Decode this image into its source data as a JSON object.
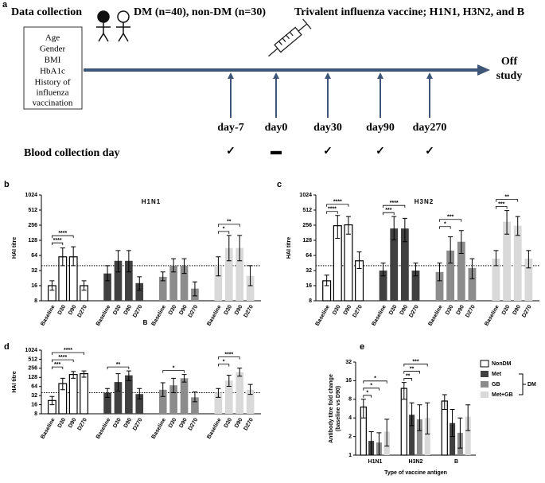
{
  "timeline": {
    "label": "a",
    "left_title": "Data collection",
    "groups": "DM (n=40), non-DM (n=30)",
    "vaccine": "Trivalent influenza vaccine; H1N1, H3N2, and B",
    "variables": [
      "Age",
      "Gender",
      "BMI",
      "HbA1c",
      "History of",
      "influenza",
      "vaccination"
    ],
    "end": [
      "Off",
      "study"
    ],
    "days": [
      "day-7",
      "day0",
      "day30",
      "day90",
      "day270"
    ],
    "blood_label": "Blood collection day",
    "collection": [
      "✓",
      "▬",
      "✓",
      "✓",
      "✓"
    ]
  },
  "chart_data": [
    {
      "type": "bar",
      "panel": "b",
      "title": "H1N1",
      "ylabel": "HAI titre",
      "group_by": "series",
      "yscale": "log",
      "categories": [
        "Baseline",
        "D30",
        "D90",
        "D270"
      ],
      "series": [
        {
          "color": "#ffffff",
          "values": [
            16,
            60,
            60,
            16
          ],
          "err_low": [
            13,
            40,
            40,
            13
          ],
          "err_high": [
            20,
            90,
            95,
            20
          ]
        },
        {
          "color": "#404040",
          "values": [
            28,
            50,
            50,
            18
          ],
          "err_low": [
            20,
            30,
            30,
            13
          ],
          "err_high": [
            40,
            80,
            80,
            24
          ]
        },
        {
          "color": "#8c8c8c",
          "values": [
            24,
            40,
            40,
            14
          ],
          "err_low": [
            20,
            30,
            28,
            10
          ],
          "err_high": [
            30,
            55,
            55,
            19
          ]
        },
        {
          "color": "#d9d9d9",
          "values": [
            40,
            90,
            90,
            25
          ],
          "err_low": [
            25,
            50,
            50,
            16
          ],
          "err_high": [
            60,
            160,
            160,
            40
          ]
        }
      ],
      "ref_line": 40,
      "brackets": [
        {
          "group": 0,
          "from": 0,
          "to": 1,
          "label": "****"
        },
        {
          "group": 0,
          "from": 0,
          "to": 2,
          "label": "****"
        },
        {
          "group": 3,
          "from": 0,
          "to": 1,
          "label": "*"
        },
        {
          "group": 3,
          "from": 0,
          "to": 2,
          "label": "**"
        }
      ],
      "ylim": [
        8,
        1024
      ],
      "yticks": [
        8,
        16,
        32,
        64,
        128,
        256,
        512,
        1024
      ]
    },
    {
      "type": "bar",
      "panel": "c",
      "title": "H3N2",
      "ylabel": "HAI titre",
      "group_by": "series",
      "yscale": "log",
      "categories": [
        "Baseline",
        "D30",
        "D90",
        "D270"
      ],
      "series": [
        {
          "color": "#ffffff",
          "values": [
            20,
            250,
            260,
            50
          ],
          "err_low": [
            16,
            140,
            170,
            35
          ],
          "err_high": [
            26,
            400,
            380,
            75
          ]
        },
        {
          "color": "#404040",
          "values": [
            32,
            220,
            220,
            32
          ],
          "err_low": [
            25,
            130,
            120,
            25
          ],
          "err_high": [
            45,
            380,
            350,
            45
          ]
        },
        {
          "color": "#8c8c8c",
          "values": [
            30,
            80,
            120,
            36
          ],
          "err_low": [
            20,
            45,
            70,
            22
          ],
          "err_high": [
            45,
            150,
            200,
            55
          ]
        },
        {
          "color": "#d9d9d9",
          "values": [
            55,
            300,
            250,
            55
          ],
          "err_low": [
            40,
            170,
            160,
            36
          ],
          "err_high": [
            80,
            500,
            380,
            80
          ]
        }
      ],
      "ref_line": 40,
      "brackets": [
        {
          "group": 0,
          "from": 0,
          "to": 1,
          "label": "****"
        },
        {
          "group": 0,
          "from": 0,
          "to": 2,
          "label": "****"
        },
        {
          "group": 1,
          "from": 0,
          "to": 1,
          "label": "***"
        },
        {
          "group": 1,
          "from": 0,
          "to": 2,
          "label": "****"
        },
        {
          "group": 2,
          "from": 0,
          "to": 1,
          "label": "*"
        },
        {
          "group": 2,
          "from": 0,
          "to": 2,
          "label": "***"
        },
        {
          "group": 3,
          "from": 0,
          "to": 1,
          "label": "***"
        },
        {
          "group": 3,
          "from": 0,
          "to": 2,
          "label": "**"
        }
      ],
      "ylim": [
        8,
        1024
      ],
      "yticks": [
        8,
        16,
        32,
        64,
        128,
        256,
        512,
        1024
      ]
    },
    {
      "type": "bar",
      "panel": "d",
      "title": "B",
      "ylabel": "HAI titre",
      "group_by": "series",
      "yscale": "log",
      "categories": [
        "Baseline",
        "D30",
        "D90",
        "D270"
      ],
      "series": [
        {
          "color": "#ffffff",
          "values": [
            22,
            80,
            160,
            170
          ],
          "err_low": [
            16,
            50,
            120,
            130
          ],
          "err_high": [
            30,
            120,
            200,
            210
          ]
        },
        {
          "color": "#404040",
          "values": [
            40,
            90,
            150,
            36
          ],
          "err_low": [
            28,
            45,
            100,
            25
          ],
          "err_high": [
            55,
            170,
            210,
            55
          ]
        },
        {
          "color": "#8c8c8c",
          "values": [
            50,
            70,
            120,
            28
          ],
          "err_low": [
            30,
            40,
            90,
            20
          ],
          "err_high": [
            85,
            120,
            160,
            42
          ]
        },
        {
          "color": "#d9d9d9",
          "values": [
            40,
            100,
            190,
            50
          ],
          "err_low": [
            28,
            65,
            140,
            35
          ],
          "err_high": [
            55,
            150,
            260,
            75
          ]
        }
      ],
      "ref_line": 40,
      "brackets": [
        {
          "group": 0,
          "from": 0,
          "to": 1,
          "label": "***"
        },
        {
          "group": 0,
          "from": 0,
          "to": 2,
          "label": "****"
        },
        {
          "group": 0,
          "from": 0,
          "to": 3,
          "label": "****"
        },
        {
          "group": 1,
          "from": 0,
          "to": 2,
          "label": "**"
        },
        {
          "group": 2,
          "from": 0,
          "to": 2,
          "label": "*"
        },
        {
          "group": 3,
          "from": 0,
          "to": 1,
          "label": "*"
        },
        {
          "group": 3,
          "from": 0,
          "to": 2,
          "label": "****"
        }
      ],
      "ylim": [
        8,
        1024
      ],
      "yticks": [
        8,
        16,
        32,
        64,
        128,
        256,
        512,
        1024
      ]
    },
    {
      "type": "bar",
      "panel": "e",
      "ylabel": [
        "Antibody titre fold change",
        "(baseline vs D90)"
      ],
      "xlabel": "Type of vaccine antigen",
      "group_by": "category",
      "yscale": "log",
      "categories": [
        "H1N1",
        "H3N2",
        "B"
      ],
      "series": [
        {
          "name": "NonDM",
          "color": "#ffffff",
          "values": [
            6,
            12,
            7.5
          ],
          "err_low": [
            4,
            8,
            5.5
          ],
          "err_high": [
            8,
            15,
            9.5
          ]
        },
        {
          "name": "Met",
          "color": "#404040",
          "values": [
            1.7,
            4.5,
            3.3
          ],
          "err_low": [
            1,
            3,
            2
          ],
          "err_high": [
            2.4,
            7,
            5.5
          ]
        },
        {
          "name": "GB",
          "color": "#8c8c8c",
          "values": [
            1.6,
            3.8,
            2.3
          ],
          "err_low": [
            1,
            2.5,
            1.3
          ],
          "err_high": [
            2.3,
            6.5,
            4
          ]
        },
        {
          "name": "Met+GB",
          "color": "#d9d9d9",
          "values": [
            2.4,
            4,
            4.2
          ],
          "err_low": [
            1.4,
            2.2,
            2.5
          ],
          "err_high": [
            3.8,
            7,
            6.5
          ]
        }
      ],
      "legend": "right",
      "legend_group": "DM",
      "brackets": [
        {
          "group": 0,
          "from": 0,
          "to": 1,
          "label": "*"
        },
        {
          "group": 0,
          "from": 0,
          "to": 2,
          "label": "*"
        },
        {
          "group": 0,
          "from": 0,
          "to": 3,
          "label": "*"
        },
        {
          "group": 1,
          "from": 0,
          "to": 1,
          "label": "**"
        },
        {
          "group": 1,
          "from": 0,
          "to": 2,
          "label": "**"
        },
        {
          "group": 1,
          "from": 0,
          "to": 3,
          "label": "***"
        }
      ],
      "ylim": [
        1,
        32
      ],
      "yticks": [
        1,
        2,
        4,
        8,
        16,
        32
      ]
    }
  ]
}
